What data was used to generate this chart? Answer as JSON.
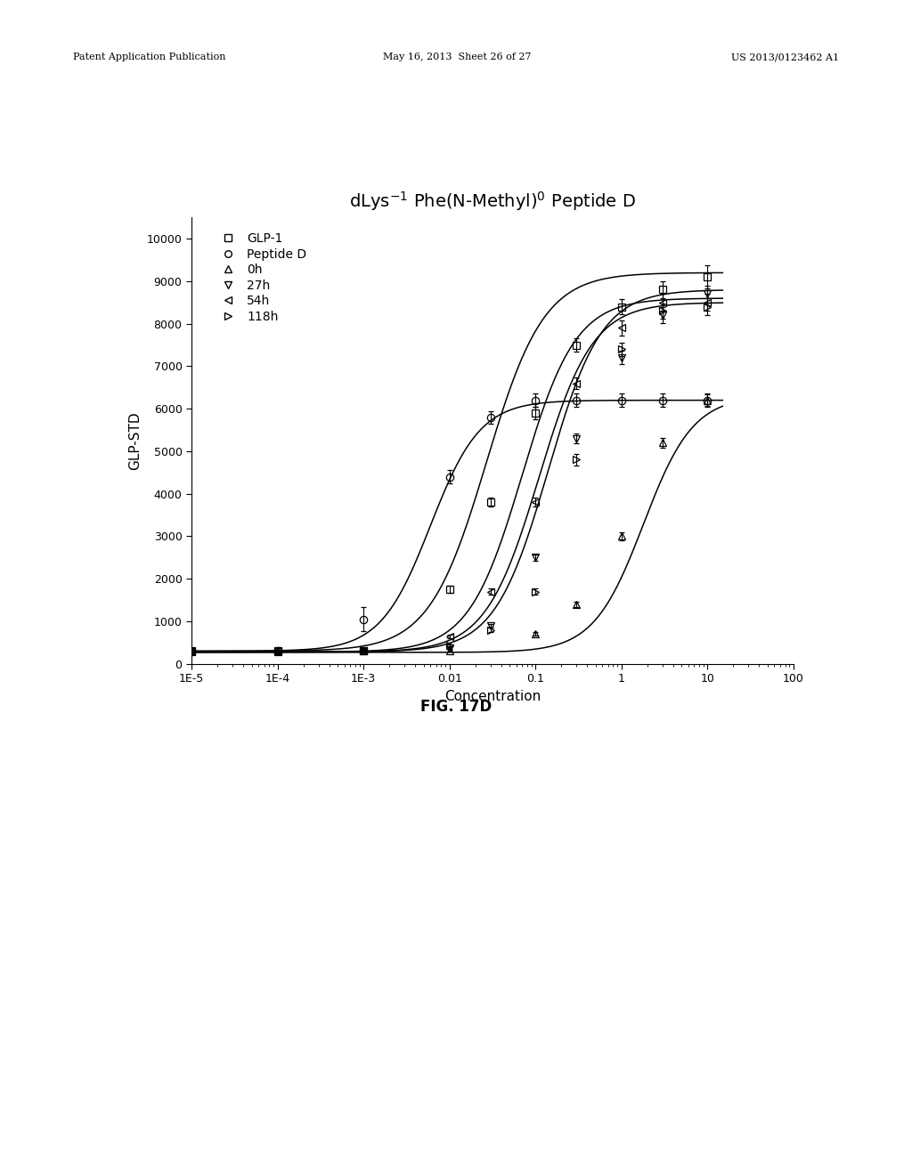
{
  "title_main": "dLys",
  "title_sup1": "-1",
  "title_mid": " Phe(N-Methyl)",
  "title_sup2": "0",
  "title_end": " Peptide D",
  "xlabel": "Concentration",
  "ylabel": "GLP-STD",
  "fig_caption": "FIG. 17D",
  "header_left": "Patent Application Publication",
  "header_center": "May 16, 2013  Sheet 26 of 27",
  "header_right": "US 2013/0123462 A1",
  "ylim": [
    0,
    10500
  ],
  "yticks": [
    0,
    1000,
    2000,
    3000,
    4000,
    5000,
    6000,
    7000,
    8000,
    9000,
    10000
  ],
  "series": [
    {
      "label": "GLP-1",
      "marker": "s",
      "x_data": [
        1e-05,
        0.0001,
        0.001,
        0.01,
        0.03,
        0.1,
        0.3,
        1.0,
        3.0,
        10.0
      ],
      "y_data": [
        300,
        310,
        320,
        1750,
        3800,
        5900,
        7500,
        8400,
        8800,
        9100
      ],
      "y_err": [
        20,
        20,
        20,
        90,
        100,
        150,
        150,
        180,
        200,
        280
      ],
      "ec50": 0.027,
      "emax": 9200,
      "emin": 300,
      "hill": 1.3
    },
    {
      "label": "Peptide D",
      "marker": "o",
      "x_data": [
        0.0001,
        0.001,
        0.01,
        0.03,
        0.1,
        0.3,
        1.0,
        3.0,
        10.0
      ],
      "y_data": [
        300,
        1050,
        4400,
        5800,
        6200,
        6200,
        6200,
        6200,
        6200
      ],
      "y_err": [
        30,
        280,
        150,
        150,
        150,
        150,
        150,
        150,
        150
      ],
      "ec50": 0.006,
      "emax": 6200,
      "emin": 300,
      "hill": 1.5
    },
    {
      "label": "0h",
      "marker": "^",
      "x_data": [
        1e-05,
        0.0001,
        0.001,
        0.01,
        0.1,
        0.3,
        1.0,
        3.0,
        10.0
      ],
      "y_data": [
        280,
        290,
        300,
        310,
        700,
        1400,
        3000,
        5200,
        6200
      ],
      "y_err": [
        20,
        20,
        20,
        20,
        40,
        60,
        100,
        120,
        130
      ],
      "ec50": 1.8,
      "emax": 6300,
      "emin": 270,
      "hill": 1.5
    },
    {
      "label": "27h",
      "marker": "v",
      "x_data": [
        1e-05,
        0.0001,
        0.001,
        0.01,
        0.03,
        0.1,
        0.3,
        1.0,
        3.0,
        10.0
      ],
      "y_data": [
        290,
        295,
        310,
        380,
        900,
        2500,
        5300,
        7200,
        8200,
        8700
      ],
      "y_err": [
        20,
        20,
        20,
        25,
        40,
        80,
        120,
        160,
        180,
        200
      ],
      "ec50": 0.14,
      "emax": 8800,
      "emin": 280,
      "hill": 1.4
    },
    {
      "label": "54h",
      "marker": "<",
      "x_data": [
        1e-05,
        0.0001,
        0.001,
        0.01,
        0.03,
        0.1,
        0.3,
        1.0,
        3.0,
        10.0
      ],
      "y_data": [
        290,
        300,
        320,
        650,
        1700,
        3800,
        6600,
        7900,
        8500,
        8500
      ],
      "y_err": [
        20,
        20,
        25,
        40,
        70,
        100,
        130,
        170,
        200,
        200
      ],
      "ec50": 0.07,
      "emax": 8600,
      "emin": 280,
      "hill": 1.4
    },
    {
      "label": "118h",
      "marker": ">",
      "x_data": [
        1e-05,
        0.0001,
        0.001,
        0.01,
        0.03,
        0.1,
        0.3,
        1.0,
        3.0,
        10.0
      ],
      "y_data": [
        290,
        295,
        315,
        430,
        800,
        1700,
        4800,
        7400,
        8300,
        8400
      ],
      "y_err": [
        20,
        20,
        20,
        30,
        50,
        80,
        130,
        160,
        180,
        190
      ],
      "ec50": 0.11,
      "emax": 8500,
      "emin": 280,
      "hill": 1.4
    }
  ],
  "background_color": "#ffffff",
  "title_fontsize": 14,
  "axis_fontsize": 11,
  "tick_fontsize": 9,
  "legend_fontsize": 10
}
